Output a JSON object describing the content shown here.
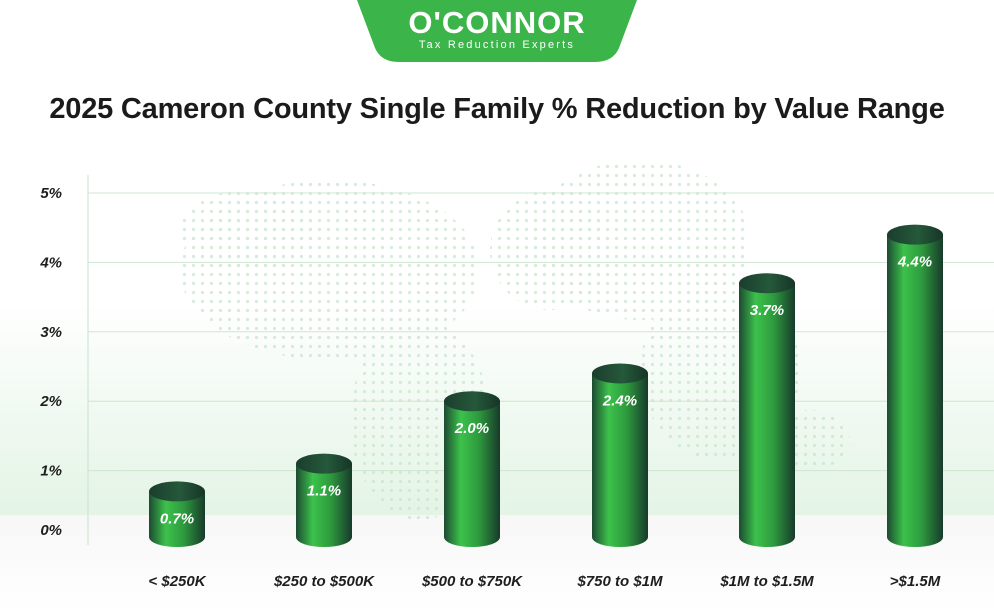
{
  "brand": {
    "name": "O'CONNOR",
    "tagline": "Tax Reduction Experts",
    "color": "#3bb54a"
  },
  "chart_data": {
    "type": "bar",
    "title": "2025 Cameron County Single Family % Reduction by Value Range",
    "categories": [
      "< $250K",
      "$250 to $500K",
      "$500 to $750K",
      "$750 to $1M",
      "$1M to $1.5M",
      ">$1.5M"
    ],
    "values": [
      0.7,
      1.1,
      2.0,
      2.4,
      3.7,
      4.4
    ],
    "data_labels": [
      "0.7%",
      "1.1%",
      "2.0%",
      "2.4%",
      "3.7%",
      "4.4%"
    ],
    "y_ticks": [
      0,
      1,
      2,
      3,
      4,
      5
    ],
    "y_tick_labels": [
      "0%",
      "1%",
      "2%",
      "3%",
      "4%",
      "5%"
    ],
    "ylim": [
      0,
      5
    ],
    "xlabel": "",
    "ylabel": "",
    "grid": true,
    "bar_style": "3d-cylinder",
    "bar_color_light": "#3fbf4c",
    "bar_color_dark": "#1b3f30"
  }
}
